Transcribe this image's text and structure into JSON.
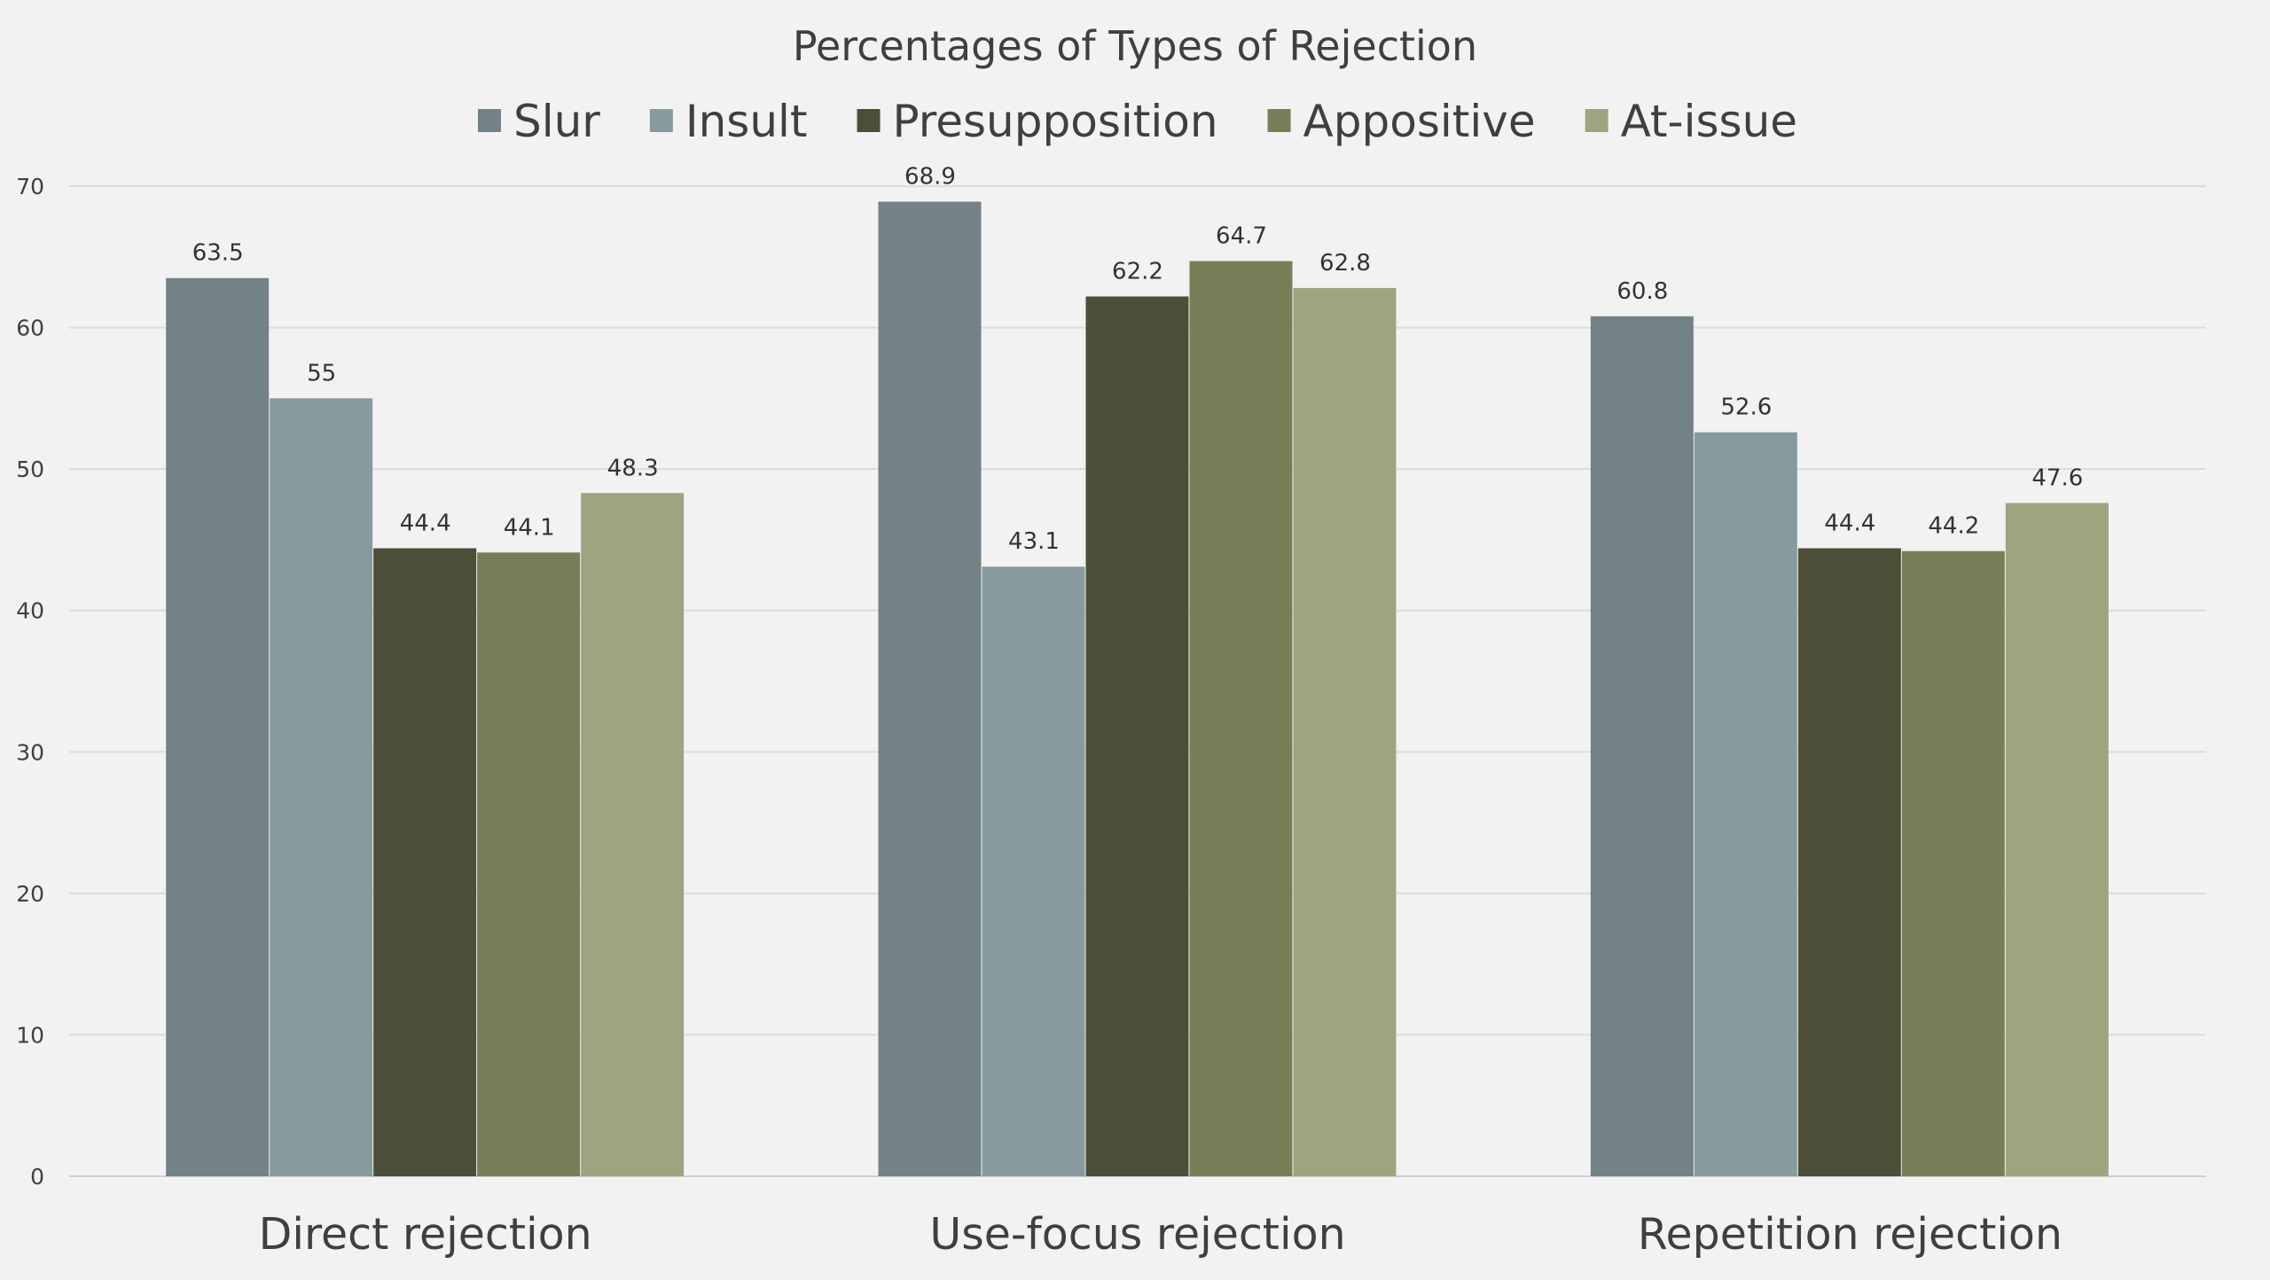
{
  "chart_data": {
    "type": "bar",
    "title": "Percentages of Types of Rejection",
    "categories": [
      "Direct rejection",
      "Use-focus rejection",
      "Repetition rejection"
    ],
    "series": [
      {
        "name": "Slur",
        "color": "#728286",
        "values": [
          63.5,
          68.9,
          60.8
        ],
        "labels": [
          "63.5",
          "68.9",
          "60.8"
        ]
      },
      {
        "name": "Insult",
        "color": "#879b9e",
        "values": [
          55,
          43.1,
          52.6
        ],
        "labels": [
          "55",
          "43.1",
          "52.6"
        ]
      },
      {
        "name": "Presupposition",
        "color": "#4b4f38",
        "values": [
          44.4,
          62.2,
          44.4
        ],
        "labels": [
          "44.4",
          "62.2",
          "44.4"
        ]
      },
      {
        "name": "Appositive",
        "color": "#767e58",
        "values": [
          44.1,
          64.7,
          44.2
        ],
        "labels": [
          "44.1",
          "64.7",
          "44.2"
        ]
      },
      {
        "name": "At-issue",
        "color": "#9ea480",
        "values": [
          48.3,
          62.8,
          47.6
        ],
        "labels": [
          "48.3",
          "62.8",
          "47.6"
        ]
      }
    ],
    "ylim": [
      0,
      70
    ],
    "yticks": [
      0,
      10,
      20,
      30,
      40,
      50,
      60,
      70
    ],
    "xlabel": "",
    "ylabel": "",
    "grid": true,
    "legend_position": "top-center"
  }
}
